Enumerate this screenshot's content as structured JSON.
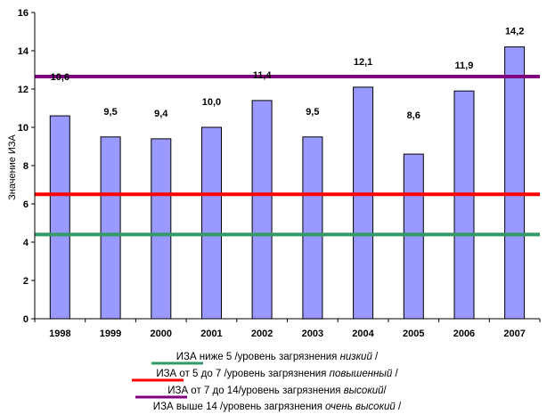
{
  "chart_data": {
    "type": "bar",
    "categories": [
      "1998",
      "1999",
      "2000",
      "2001",
      "2002",
      "2003",
      "2004",
      "2005",
      "2006",
      "2007"
    ],
    "values": [
      10.6,
      9.5,
      9.4,
      10.0,
      11.4,
      9.5,
      12.1,
      8.6,
      11.9,
      14.2
    ],
    "data_labels": [
      "10,6",
      "9,5",
      "9,4",
      "10,0",
      "11,4",
      "9,5",
      "12,1",
      "8,6",
      "11,9",
      "14,2"
    ],
    "ylabel": "Значение ИЗА",
    "ylim": [
      0,
      16
    ],
    "yticks": [
      "0",
      "2",
      "4",
      "6",
      "8",
      "10",
      "12",
      "14",
      "16"
    ],
    "bar_color": "#9999ff",
    "grid": false,
    "reference_lines": [
      {
        "value": 4.4,
        "color": "#339966"
      },
      {
        "value": 6.5,
        "color": "#ff0000"
      },
      {
        "value": 12.65,
        "color": "#800080"
      }
    ],
    "legend": [
      {
        "prefix": "ИЗА ниже 5 /уровень загрязнения ",
        "emph": "низкий",
        "suffix": " /",
        "color": "#339966"
      },
      {
        "prefix": "ИЗА от 5 до 7 /уровень загрязнения ",
        "emph": "повышенный",
        "suffix": " /",
        "color": "#ff0000"
      },
      {
        "prefix": "ИЗА от 7 до 14/уровень загрязнения ",
        "emph": "высокий",
        "suffix": "/",
        "color": "#800080"
      },
      {
        "prefix": "ИЗА выше 14 /уровень загрязнения ",
        "emph": "очень высокий",
        "suffix": " /",
        "color": ""
      }
    ]
  }
}
